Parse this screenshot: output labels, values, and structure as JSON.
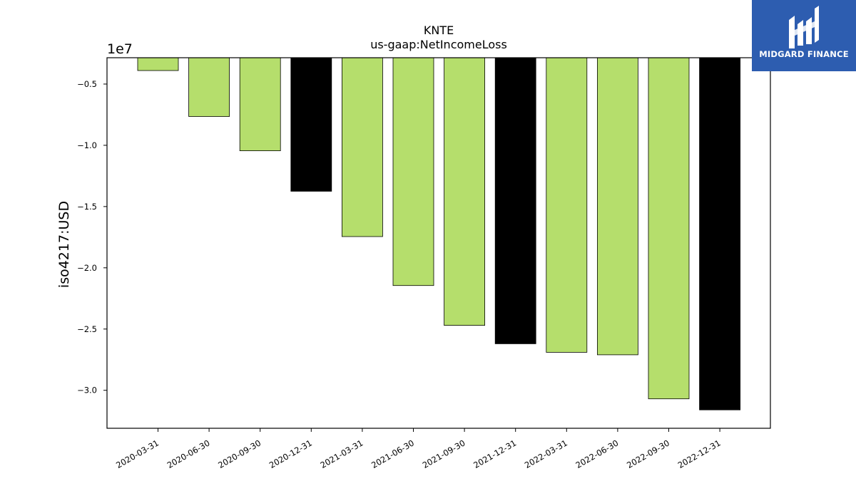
{
  "logo": {
    "text": "MIDGARD FINANCE",
    "icon": "midgard-logo-icon",
    "background": "#2d5db0"
  },
  "colors": {
    "primary_bar": "#b5de6c",
    "highlight_bar": "#000000"
  },
  "chart_data": {
    "type": "bar",
    "title": "KNTE",
    "subtitle": "us-gaap:NetIncomeLoss",
    "xlabel": "",
    "ylabel": "iso4217:USD",
    "scale_label": "1e7",
    "categories": [
      "2020-03-31",
      "2020-06-30",
      "2020-09-30",
      "2020-12-31",
      "2021-03-31",
      "2021-06-30",
      "2021-09-30",
      "2021-12-31",
      "2022-03-31",
      "2022-06-30",
      "2022-09-30",
      "2022-12-31"
    ],
    "values": [
      -3900000,
      -7650000,
      -10450000,
      -13750000,
      -17450000,
      -21450000,
      -24700000,
      -26200000,
      -26900000,
      -27100000,
      -30700000,
      -31600000
    ],
    "highlight": [
      false,
      false,
      false,
      true,
      false,
      false,
      false,
      true,
      false,
      false,
      false,
      true
    ],
    "ylim": [
      -33100000,
      -2850000
    ],
    "yticks": [
      -5000000,
      -10000000,
      -15000000,
      -20000000,
      -25000000,
      -30000000
    ],
    "ytick_labels": [
      "−0.5",
      "−1.0",
      "−1.5",
      "−2.0",
      "−2.5",
      "−3.0"
    ],
    "grid": false,
    "legend": "none"
  }
}
